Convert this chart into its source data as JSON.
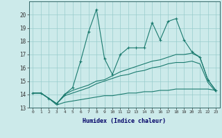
{
  "xlabel": "Humidex (Indice chaleur)",
  "x_values": [
    0,
    1,
    2,
    3,
    4,
    5,
    6,
    7,
    8,
    9,
    10,
    11,
    12,
    13,
    14,
    15,
    16,
    17,
    18,
    19,
    20,
    21,
    22,
    23
  ],
  "main_line": [
    14.1,
    14.1,
    13.7,
    13.3,
    14.0,
    14.5,
    16.5,
    18.7,
    20.4,
    16.7,
    15.5,
    17.0,
    17.5,
    17.5,
    17.5,
    19.4,
    18.1,
    19.5,
    19.7,
    18.1,
    17.2,
    16.8,
    15.1,
    14.3
  ],
  "line2": [
    14.1,
    14.1,
    13.7,
    13.3,
    14.0,
    14.3,
    14.5,
    14.7,
    15.0,
    15.1,
    15.4,
    15.7,
    15.9,
    16.1,
    16.3,
    16.5,
    16.6,
    16.8,
    17.0,
    17.0,
    17.1,
    16.8,
    15.1,
    14.3
  ],
  "line3": [
    14.1,
    14.1,
    13.7,
    13.3,
    13.9,
    14.1,
    14.3,
    14.5,
    14.8,
    15.0,
    15.2,
    15.4,
    15.5,
    15.7,
    15.8,
    16.0,
    16.1,
    16.3,
    16.4,
    16.4,
    16.5,
    16.3,
    14.9,
    14.2
  ],
  "line4": [
    14.1,
    14.1,
    13.7,
    13.2,
    13.4,
    13.5,
    13.6,
    13.7,
    13.8,
    13.9,
    13.9,
    14.0,
    14.1,
    14.1,
    14.2,
    14.2,
    14.3,
    14.3,
    14.4,
    14.4,
    14.4,
    14.4,
    14.4,
    14.3
  ],
  "ylim": [
    13,
    21
  ],
  "xlim": [
    -0.5,
    23.5
  ],
  "yticks": [
    13,
    14,
    15,
    16,
    17,
    18,
    19,
    20
  ],
  "xticks": [
    0,
    1,
    2,
    3,
    4,
    5,
    6,
    7,
    8,
    9,
    10,
    11,
    12,
    13,
    14,
    15,
    16,
    17,
    18,
    19,
    20,
    21,
    22,
    23
  ],
  "line_color": "#1a7a6e",
  "bg_color": "#cceaea",
  "grid_color": "#99cccc"
}
